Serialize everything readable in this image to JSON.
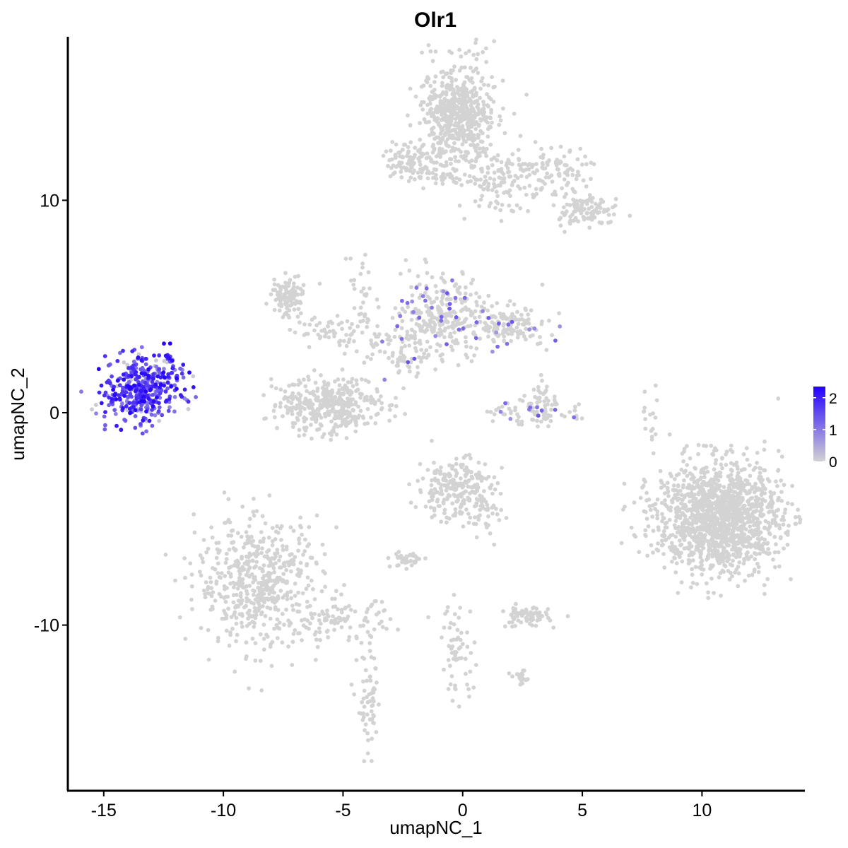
{
  "chart_data": {
    "type": "scatter",
    "title": "Olr1",
    "xlabel": "umapNC_1",
    "ylabel": "umapNC_2",
    "xlim": [
      -16.5,
      14.3
    ],
    "ylim": [
      -17.8,
      17.7
    ],
    "x_ticks": [
      -15,
      -10,
      -5,
      0,
      5,
      10
    ],
    "y_ticks": [
      -10,
      0,
      10
    ],
    "x_tick_labels": [
      "-15",
      "-10",
      "-5",
      "0",
      "5",
      "10"
    ],
    "y_tick_labels": [
      "-10",
      "0",
      "10"
    ],
    "grid": false,
    "legend": {
      "placement": "right",
      "colorscale": {
        "low": "#d3d3d3",
        "high": "#2200ff"
      },
      "range": [
        0,
        2.35
      ],
      "tick_values": [
        0,
        1,
        2
      ],
      "tick_labels": [
        "0",
        "1",
        "2"
      ]
    },
    "not_expressing_color": "#d3d3d3",
    "clusters": [
      {
        "center": [
          -13.5,
          1.1
        ],
        "spread": [
          0.75,
          0.8
        ],
        "count": 380,
        "expression": "high"
      },
      {
        "center": [
          -12.2,
          1.8
        ],
        "spread": [
          0.35,
          0.6
        ],
        "count": 35,
        "expression": "high"
      },
      {
        "center": [
          -0.2,
          14.0
        ],
        "spread": [
          0.75,
          1.2
        ],
        "count": 600,
        "expression": "none"
      },
      {
        "center": [
          1.5,
          11.0
        ],
        "spread": [
          0.9,
          0.7
        ],
        "count": 130,
        "expression": "none"
      },
      {
        "center": [
          3.8,
          11.5
        ],
        "spread": [
          0.9,
          0.5
        ],
        "count": 90,
        "expression": "none"
      },
      {
        "center": [
          5.0,
          9.5
        ],
        "spread": [
          0.6,
          0.4
        ],
        "count": 110,
        "expression": "none"
      },
      {
        "center": [
          -2.2,
          11.8
        ],
        "spread": [
          0.5,
          0.4
        ],
        "count": 80,
        "expression": "none"
      },
      {
        "center": [
          -0.9,
          11.1
        ],
        "spread": [
          0.8,
          0.2
        ],
        "count": 40,
        "expression": "none"
      },
      {
        "center": [
          -7.3,
          5.5
        ],
        "spread": [
          0.35,
          0.45
        ],
        "count": 110,
        "expression": "none"
      },
      {
        "center": [
          -5.6,
          3.8
        ],
        "spread": [
          0.7,
          0.3
        ],
        "count": 40,
        "expression": "none"
      },
      {
        "center": [
          -4.2,
          5.5
        ],
        "spread": [
          0.3,
          1.2
        ],
        "count": 30,
        "expression": "none"
      },
      {
        "center": [
          -3.0,
          3.3
        ],
        "spread": [
          1.2,
          0.6
        ],
        "count": 60,
        "expression": "none"
      },
      {
        "center": [
          -0.8,
          4.5
        ],
        "spread": [
          1.0,
          0.9
        ],
        "count": 280,
        "expression": "low"
      },
      {
        "center": [
          1.8,
          4.1
        ],
        "spread": [
          0.8,
          0.45
        ],
        "count": 150,
        "expression": "low"
      },
      {
        "center": [
          -2.3,
          2.2
        ],
        "spread": [
          0.35,
          0.55
        ],
        "count": 30,
        "expression": "low"
      },
      {
        "center": [
          -5.5,
          0.3
        ],
        "spread": [
          1.1,
          0.65
        ],
        "count": 380,
        "expression": "none"
      },
      {
        "center": [
          3.0,
          0.0
        ],
        "spread": [
          1.0,
          0.35
        ],
        "count": 80,
        "expression": "low"
      },
      {
        "center": [
          3.3,
          0.8
        ],
        "spread": [
          0.3,
          0.5
        ],
        "count": 25,
        "expression": "low"
      },
      {
        "center": [
          -0.3,
          -3.6
        ],
        "spread": [
          0.8,
          0.75
        ],
        "count": 230,
        "expression": "none"
      },
      {
        "center": [
          1.0,
          -4.8
        ],
        "spread": [
          0.4,
          0.6
        ],
        "count": 30,
        "expression": "none"
      },
      {
        "center": [
          -8.5,
          -8.0
        ],
        "spread": [
          1.3,
          1.5
        ],
        "count": 550,
        "expression": "none"
      },
      {
        "center": [
          -5.0,
          -9.8
        ],
        "spread": [
          1.0,
          0.5
        ],
        "count": 90,
        "expression": "none"
      },
      {
        "center": [
          -3.9,
          -13.8
        ],
        "spread": [
          0.25,
          1.3
        ],
        "count": 60,
        "expression": "none"
      },
      {
        "center": [
          -2.3,
          -6.9
        ],
        "spread": [
          0.35,
          0.2
        ],
        "count": 40,
        "expression": "none"
      },
      {
        "center": [
          2.6,
          -9.6
        ],
        "spread": [
          0.5,
          0.25
        ],
        "count": 70,
        "expression": "none"
      },
      {
        "center": [
          2.5,
          -12.5
        ],
        "spread": [
          0.25,
          0.15
        ],
        "count": 20,
        "expression": "none"
      },
      {
        "center": [
          -0.2,
          -11.2
        ],
        "spread": [
          0.35,
          1.2
        ],
        "count": 60,
        "expression": "none"
      },
      {
        "center": [
          10.7,
          -4.9
        ],
        "spread": [
          1.3,
          1.3
        ],
        "count": 1400,
        "expression": "none"
      },
      {
        "center": [
          7.9,
          -0.2
        ],
        "spread": [
          0.2,
          0.7
        ],
        "count": 15,
        "expression": "none"
      }
    ]
  }
}
